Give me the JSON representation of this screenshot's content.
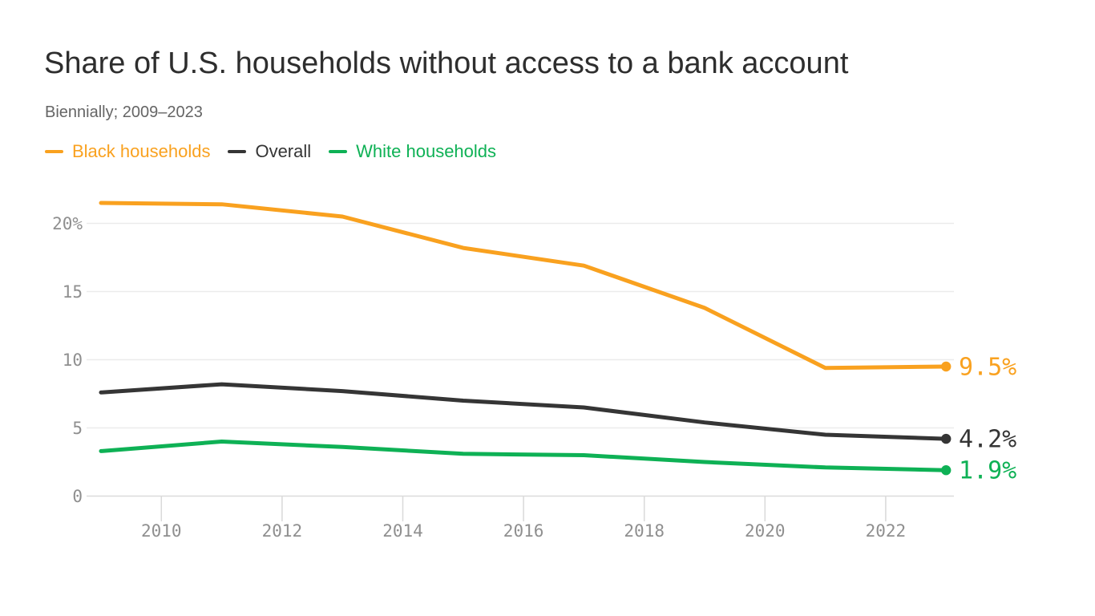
{
  "header": {
    "title": "Share of U.S. households without access to a bank account",
    "subtitle": "Biennially; 2009–2023"
  },
  "legend": {
    "items": [
      {
        "label": "Black households",
        "color": "#F9A11F"
      },
      {
        "label": "Overall",
        "color": "#353535"
      },
      {
        "label": "White households",
        "color": "#0EB155"
      }
    ]
  },
  "chart_data": {
    "type": "line",
    "title": "Share of U.S. households without access to a bank account",
    "subtitle": "Biennially; 2009–2023",
    "x": [
      2009,
      2011,
      2013,
      2015,
      2017,
      2019,
      2021,
      2023
    ],
    "series": [
      {
        "name": "Black households",
        "color": "#F9A11F",
        "values": [
          21.5,
          21.4,
          20.5,
          18.2,
          16.9,
          13.8,
          9.4,
          9.5
        ],
        "end_label": "9.5%"
      },
      {
        "name": "Overall",
        "color": "#353535",
        "values": [
          7.6,
          8.2,
          7.7,
          7.0,
          6.5,
          5.4,
          4.5,
          4.2
        ],
        "end_label": "4.2%"
      },
      {
        "name": "White households",
        "color": "#0EB155",
        "values": [
          3.3,
          4.0,
          3.6,
          3.1,
          3.0,
          2.5,
          2.1,
          1.9
        ],
        "end_label": "1.9%"
      }
    ],
    "y_ticks": [
      {
        "value": 0,
        "label": "0"
      },
      {
        "value": 5,
        "label": "5"
      },
      {
        "value": 10,
        "label": "10"
      },
      {
        "value": 15,
        "label": "15"
      },
      {
        "value": 20,
        "label": "20%"
      }
    ],
    "x_ticks": [
      2010,
      2012,
      2014,
      2016,
      2018,
      2020,
      2022
    ],
    "xlim": [
      2009,
      2023
    ],
    "ylim": [
      0,
      22.4
    ],
    "grid": "horizontal-only",
    "legend_position": "top-left",
    "colors": {
      "axis_text": "#8F8F8F",
      "gridline": "#EBEBEB",
      "zero_line": "#DBDBDB",
      "tick": "#D9D9D9"
    }
  }
}
